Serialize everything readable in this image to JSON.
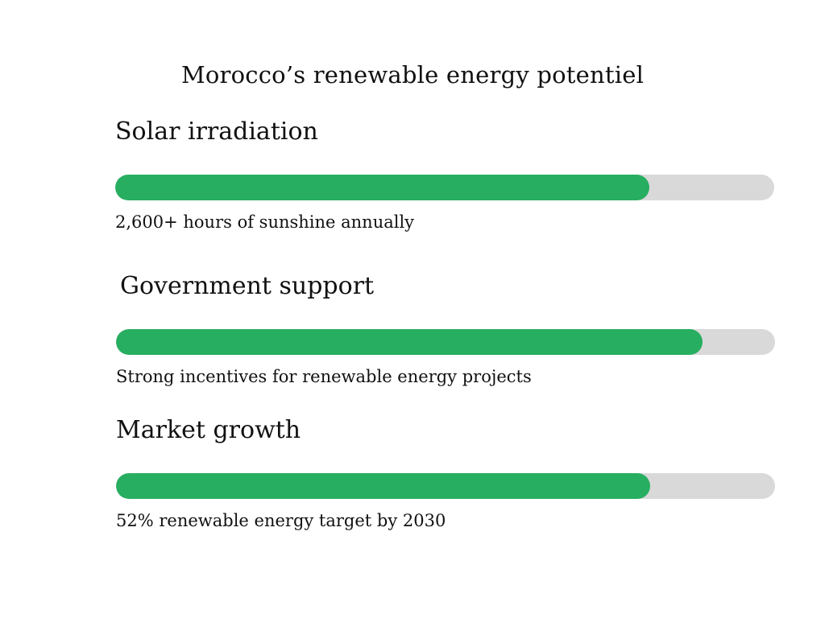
{
  "title": "Morocco’s renewable energy potentiel",
  "sections": [
    {
      "heading": "Solar irradiation",
      "caption": "2,600+ hours of sunshine annually",
      "progress": 0.81
    },
    {
      "heading": "Government support",
      "caption": "Strong incentives for renewable energy projects",
      "progress": 0.89
    },
    {
      "heading": "Market growth",
      "caption": "52% renewable energy target by 2030",
      "progress": 0.81
    }
  ],
  "colors": {
    "fill": "#27ae60",
    "track": "#d9d9d9"
  }
}
